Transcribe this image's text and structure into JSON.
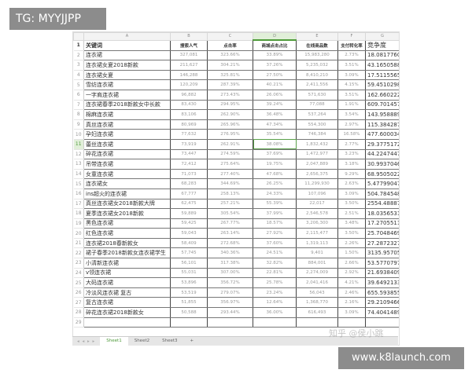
{
  "overlay": {
    "tg_label": "TG: MYYJJPP",
    "site_label": "www.k8launch.com",
    "watermark": "知乎 @侯小跳"
  },
  "columns": [
    "A",
    "B",
    "C",
    "D",
    "E",
    "F",
    "G"
  ],
  "selected_column": "D",
  "selected_row": 11,
  "header_row": [
    "关键词",
    "搜索人气",
    "点击率",
    "商城点击占比",
    "在线商品数",
    "支付转化率",
    "竞争度"
  ],
  "rows": [
    [
      "连衣裙",
      "327,081",
      "323.66%",
      "33.89%",
      "15,983,280",
      "2.73%",
      "18.08177605"
    ],
    [
      "连衣裙女夏2018新款",
      "211,627",
      "304.21%",
      "37.26%",
      "5,235,032",
      "3.51%",
      "43.16505885"
    ],
    [
      "连衣裙女夏",
      "146,288",
      "325.81%",
      "27.50%",
      "8,410,210",
      "3.09%",
      "17.51155658"
    ],
    [
      "雪纺连衣裙",
      "120,209",
      "287.39%",
      "40.21%",
      "2,411,556",
      "4.15%",
      "59.45102984"
    ],
    [
      "一字肩连衣裙",
      "96,882",
      "273.43%",
      "26.06%",
      "571,630",
      "3.51%",
      "162.6602223"
    ],
    [
      "连衣裙春季2018新款女中长款",
      "83,430",
      "294.95%",
      "39.24%",
      "77,088",
      "1.91%",
      "609.7014572"
    ],
    [
      "棉麻连衣裙",
      "83,106",
      "262.90%",
      "36.48%",
      "537,264",
      "3.54%",
      "143.9588891"
    ],
    [
      "真丝连衣裙",
      "80,969",
      "265.96%",
      "47.34%",
      "554,300",
      "2.97%",
      "115.384287"
    ],
    [
      "孕妇连衣裙",
      "77,632",
      "276.95%",
      "35.54%",
      "746,384",
      "16.58%",
      "477.6000346"
    ],
    [
      "蕾丝连衣裙",
      "73,919",
      "262.91%",
      "38.08%",
      "1,832,432",
      "2.77%",
      "29.37751725"
    ],
    [
      "碎花连衣裙",
      "73,447",
      "274.59%",
      "37.69%",
      "1,472,977",
      "3.23%",
      "44.22474478"
    ],
    [
      "吊带连衣裙",
      "72,412",
      "275.64%",
      "19.75%",
      "2,047,889",
      "3.18%",
      "30.99370469"
    ],
    [
      "女童连衣裙",
      "71,073",
      "277.40%",
      "47.68%",
      "2,656,375",
      "9.29%",
      "68.95050223"
    ],
    [
      "连衣裙女",
      "68,283",
      "344.69%",
      "26.25%",
      "11,299,930",
      "2.63%",
      "5.477990476"
    ],
    [
      "ins超火的连衣裙",
      "67,777",
      "258.13%",
      "24.33%",
      "107,096",
      "3.09%",
      "504.7845481"
    ],
    [
      "真丝连衣裙女2018新款大牌",
      "62,475",
      "257.21%",
      "55.39%",
      "22,017",
      "3.50%",
      "2554.488878"
    ],
    [
      "夏季连衣裙女2018新款",
      "59,889",
      "305.54%",
      "37.99%",
      "2,546,578",
      "2.51%",
      "18.03565314"
    ],
    [
      "黑色连衣裙",
      "59,425",
      "267.77%",
      "18.57%",
      "3,206,300",
      "3.48%",
      "17.27055117"
    ],
    [
      "红色连衣裙",
      "59,043",
      "263.14%",
      "27.92%",
      "2,115,477",
      "3.50%",
      "25.70484698"
    ],
    [
      "连衣裙2018春新款女",
      "58,409",
      "272.68%",
      "37.60%",
      "1,319,113",
      "2.26%",
      "27.28723273"
    ],
    [
      "裙子春季2018新款女连衣裙学生",
      "57,745",
      "340.36%",
      "24.51%",
      "9,401",
      "1.50%",
      "3135.957058"
    ],
    [
      "小清新连衣裙",
      "56,101",
      "317.38%",
      "32.82%",
      "884,001",
      "2.66%",
      "53.57707979"
    ],
    [
      "v领连衣裙",
      "55,031",
      "307.00%",
      "22.81%",
      "2,274,009",
      "2.92%",
      "21.69384098"
    ],
    [
      "大码连衣裙",
      "53,896",
      "356.72%",
      "25.78%",
      "2,041,416",
      "4.21%",
      "39.64921335"
    ],
    [
      "冷淡风连衣裙 复古",
      "53,519",
      "279.07%",
      "23.24%",
      "56,043",
      "2.46%",
      "655.5938553"
    ],
    [
      "复古连衣裙",
      "51,855",
      "356.97%",
      "12.64%",
      "1,368,770",
      "2.16%",
      "29.21094661"
    ],
    [
      "碎花连衣裙2018新款女",
      "50,588",
      "293.44%",
      "36.00%",
      "616,493",
      "3.09%",
      "74.40414896"
    ]
  ],
  "tabs": [
    "Sheet1",
    "Sheet2",
    "Sheet3"
  ],
  "active_tab": "Sheet1",
  "add_sheet": "+",
  "tab_nav": "◂ ◂ ▸ ▸"
}
